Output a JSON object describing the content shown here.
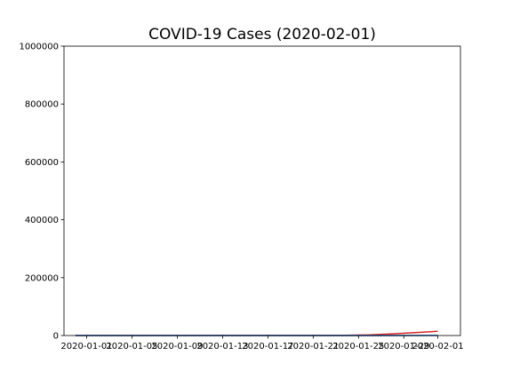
{
  "chart_data": {
    "type": "line",
    "title": "COVID-19 Cases (2020-02-01)",
    "xlabel": "",
    "ylabel": "",
    "ylim": [
      0,
      1000000
    ],
    "yticks": [
      0,
      200000,
      400000,
      600000,
      800000,
      1000000
    ],
    "yticklabels": [
      "0",
      "200000",
      "400000",
      "600000",
      "800000",
      "1000000"
    ],
    "xlim": [
      "2019-12-30",
      "2020-02-03"
    ],
    "xticks": [
      "2020-01-01",
      "2020-01-05",
      "2020-01-09",
      "2020-01-13",
      "2020-01-17",
      "2020-01-21",
      "2020-01-25",
      "2020-01-29",
      "2020-02-01"
    ],
    "grid": false,
    "series": [
      {
        "color": "#d62728",
        "x": [
          "2019-12-31",
          "2020-01-22",
          "2020-01-24",
          "2020-01-26",
          "2020-01-28",
          "2020-01-30",
          "2020-02-01"
        ],
        "values": [
          0,
          555,
          941,
          2118,
          5578,
          9826,
          14557
        ]
      },
      {
        "color": "#9467bd",
        "x": [
          "2019-12-31",
          "2020-01-22",
          "2020-01-25",
          "2020-01-28",
          "2020-02-01"
        ],
        "values": [
          0,
          17,
          56,
          131,
          305
        ]
      },
      {
        "color": "#1f77b4",
        "x": [
          "2019-12-31",
          "2020-01-22",
          "2020-01-25",
          "2020-01-28",
          "2020-02-01"
        ],
        "values": [
          0,
          28,
          39,
          107,
          464
        ]
      }
    ]
  }
}
